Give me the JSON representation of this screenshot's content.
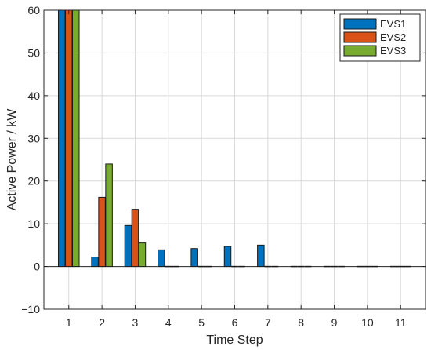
{
  "chart_data": {
    "type": "bar",
    "title": "",
    "xlabel": "Time Step",
    "ylabel": "Active Power / kW",
    "categories": [
      "1",
      "2",
      "3",
      "4",
      "5",
      "6",
      "7",
      "8",
      "9",
      "10",
      "11"
    ],
    "yticks": [
      "60",
      "50",
      "40",
      "30",
      "20",
      "10",
      "0",
      "−10"
    ],
    "ylim": [
      -10,
      60
    ],
    "grid": true,
    "legend_position": "top-right",
    "series": [
      {
        "name": "EVS1",
        "color": "#0072BD",
        "values": [
          60,
          2.2,
          9.6,
          3.9,
          4.2,
          4.7,
          5.0,
          0,
          0,
          0,
          0
        ]
      },
      {
        "name": "EVS2",
        "color": "#D95319",
        "values": [
          60,
          16.2,
          13.4,
          0,
          0,
          0,
          0,
          0,
          0,
          0,
          0
        ]
      },
      {
        "name": "EVS3",
        "color": "#77AC30",
        "values": [
          60,
          24.0,
          5.5,
          0,
          0,
          0,
          0,
          0,
          0,
          0,
          0
        ]
      }
    ]
  }
}
